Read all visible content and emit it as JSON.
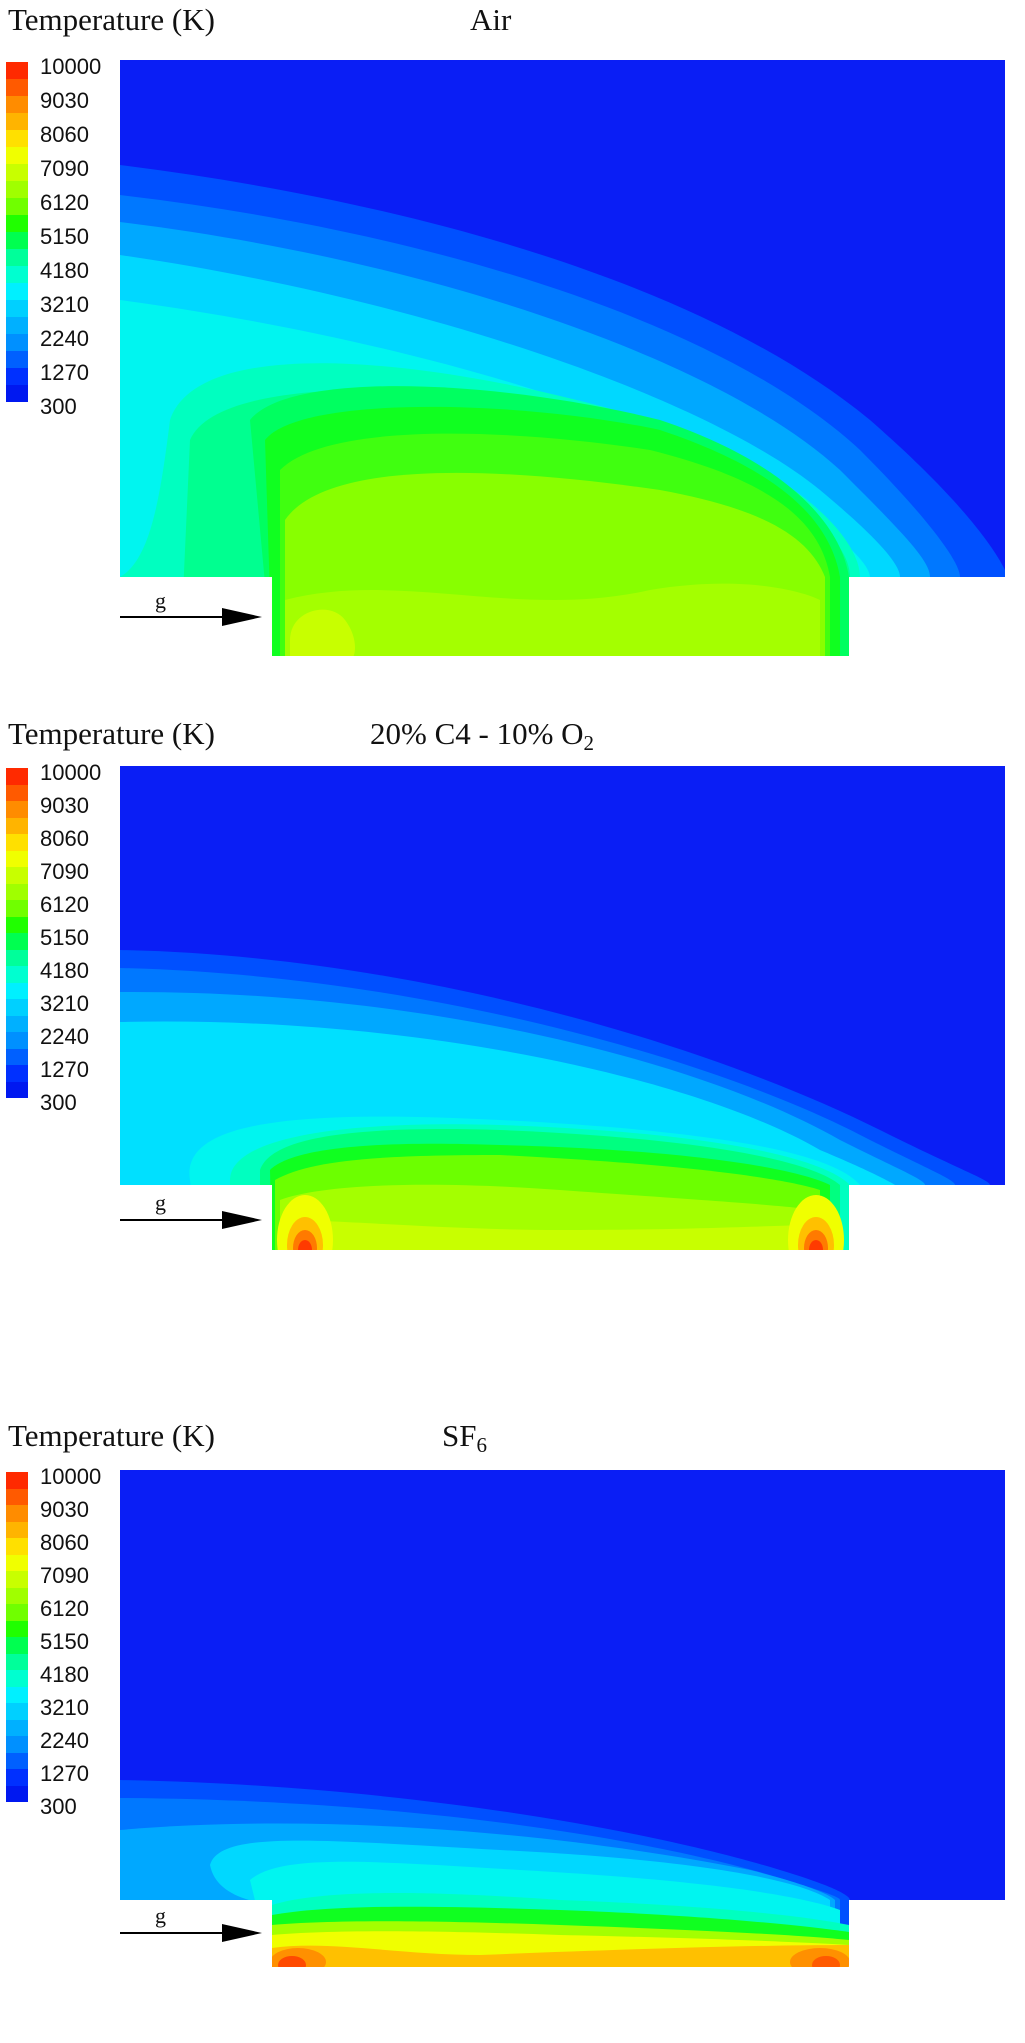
{
  "colorbar": {
    "title": "Temperature (K)",
    "ticks": [
      "10000",
      "9030",
      "8060",
      "7090",
      "6120",
      "5150",
      "4180",
      "3210",
      "2240",
      "1270",
      "300"
    ],
    "colors": [
      "#ff2a00",
      "#ff5a00",
      "#ff8c00",
      "#ffb400",
      "#ffe000",
      "#f0ff00",
      "#c8ff00",
      "#a0ff00",
      "#70ff00",
      "#20ff00",
      "#00ff50",
      "#00ff9a",
      "#00ffd0",
      "#00f0ff",
      "#00d0ff",
      "#00b0ff",
      "#0090ff",
      "#0060ff",
      "#0030ff",
      "#0018f0"
    ]
  },
  "panels": [
    {
      "label": "Air",
      "label_sub": "",
      "label_main": "Air"
    },
    {
      "label": "20% C4 - 10% O2",
      "label_main": "20% C4 - 10% O",
      "label_sub": "2"
    },
    {
      "label": "SF6",
      "label_main": "SF",
      "label_sub": "6"
    }
  ],
  "arrow": {
    "label": "g"
  },
  "chart_data": [
    {
      "type": "heatmap",
      "title": "Temperature (K) — Air",
      "colorbar_label": "Temperature (K)",
      "colorbar_ticks": [
        10000,
        9030,
        8060,
        7090,
        6120,
        5150,
        4180,
        3210,
        2240,
        1270,
        300
      ],
      "range": [
        300,
        10000
      ],
      "annotation": "g (gravity arrow pointing right)",
      "description": "Hot zone ~6000-7500 K in the lower nozzle region; wide plume expanding toward the upper-right; cold 300 K in the upper-right"
    },
    {
      "type": "heatmap",
      "title": "Temperature (K) — 20% C4 - 10% O2",
      "colorbar_label": "Temperature (K)",
      "colorbar_ticks": [
        10000,
        9030,
        8060,
        7090,
        6120,
        5150,
        4180,
        3210,
        2240,
        1270,
        300
      ],
      "range": [
        300,
        10000
      ],
      "annotation": "g (gravity arrow pointing right)",
      "description": "Hot spots near 9000-10000 K at both lower corners of the nozzle; plume compressed to lower ~half of the domain"
    },
    {
      "type": "heatmap",
      "title": "Temperature (K) — SF6",
      "colorbar_label": "Temperature (K)",
      "colorbar_ticks": [
        10000,
        9030,
        8060,
        7090,
        6120,
        5150,
        4180,
        3210,
        2240,
        1270,
        300
      ],
      "range": [
        300,
        10000
      ],
      "annotation": "g (gravity arrow pointing right)",
      "description": "Hot layer 7000-9500 K along the nozzle bottom; thin plume confined near the bottom of the domain; most of the domain at 300 K"
    }
  ]
}
